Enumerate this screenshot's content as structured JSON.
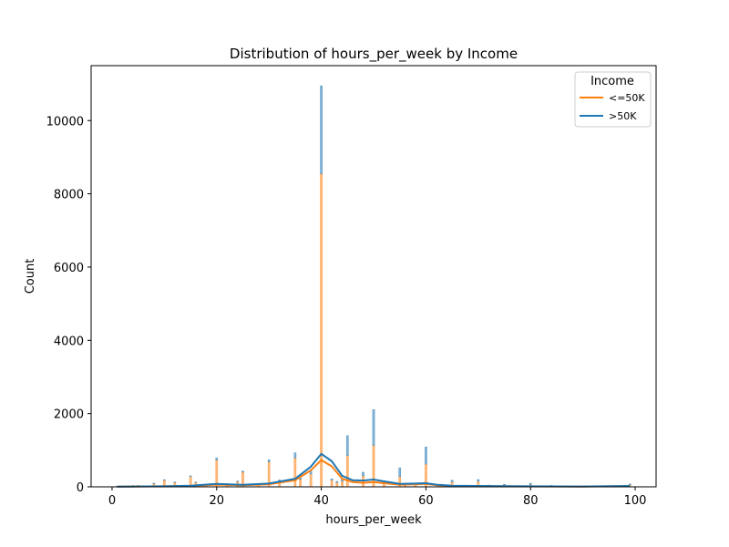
{
  "chart_data": {
    "type": "bar",
    "title": "Distribution of hours_per_week by Income",
    "xlabel": "hours_per_week",
    "ylabel": "Count",
    "xlim": [
      -4,
      104
    ],
    "ylim": [
      0,
      11500
    ],
    "xticks": [
      0,
      20,
      40,
      60,
      80,
      100
    ],
    "yticks": [
      0,
      2000,
      4000,
      6000,
      8000,
      10000
    ],
    "legend": {
      "title": "Income",
      "placement": "top-right"
    },
    "stacked": true,
    "series": [
      {
        "name": "<=50K",
        "color": "#ff7f0e",
        "x": [
          1,
          2,
          3,
          4,
          5,
          6,
          8,
          10,
          12,
          14,
          15,
          16,
          18,
          20,
          22,
          24,
          25,
          28,
          30,
          32,
          35,
          36,
          38,
          40,
          42,
          43,
          44,
          45,
          48,
          50,
          52,
          55,
          56,
          58,
          60,
          65,
          70,
          72,
          75,
          80,
          84,
          90,
          99
        ],
        "values": [
          15,
          20,
          30,
          40,
          45,
          30,
          90,
          180,
          120,
          40,
          280,
          120,
          60,
          730,
          50,
          140,
          400,
          80,
          680,
          140,
          790,
          200,
          350,
          8550,
          180,
          120,
          150,
          850,
          300,
          1130,
          100,
          280,
          50,
          80,
          620,
          130,
          150,
          40,
          50,
          60,
          30,
          20,
          60
        ],
        "kde": [
          [
            1,
            5
          ],
          [
            10,
            15
          ],
          [
            15,
            25
          ],
          [
            20,
            60
          ],
          [
            25,
            45
          ],
          [
            30,
            70
          ],
          [
            35,
            180
          ],
          [
            38,
            450
          ],
          [
            40,
            730
          ],
          [
            42,
            560
          ],
          [
            44,
            220
          ],
          [
            46,
            130
          ],
          [
            48,
            110
          ],
          [
            50,
            130
          ],
          [
            52,
            100
          ],
          [
            55,
            60
          ],
          [
            58,
            70
          ],
          [
            60,
            80
          ],
          [
            62,
            45
          ],
          [
            65,
            25
          ],
          [
            70,
            20
          ],
          [
            75,
            15
          ],
          [
            80,
            12
          ],
          [
            90,
            8
          ],
          [
            99,
            20
          ]
        ]
      },
      {
        "name": ">50K",
        "color": "#1f77b4",
        "x": [
          1,
          8,
          10,
          12,
          15,
          16,
          20,
          24,
          25,
          30,
          32,
          35,
          36,
          38,
          40,
          42,
          43,
          44,
          45,
          48,
          50,
          52,
          55,
          56,
          58,
          60,
          65,
          70,
          72,
          75,
          80,
          84,
          90,
          99
        ],
        "values": [
          3,
          10,
          15,
          10,
          20,
          10,
          60,
          20,
          30,
          60,
          50,
          140,
          40,
          80,
          2400,
          40,
          30,
          80,
          550,
          100,
          980,
          50,
          240,
          20,
          20,
          470,
          50,
          50,
          10,
          20,
          40,
          10,
          10,
          20
        ],
        "kde": [
          [
            1,
            5
          ],
          [
            10,
            15
          ],
          [
            15,
            30
          ],
          [
            20,
            80
          ],
          [
            25,
            55
          ],
          [
            30,
            90
          ],
          [
            35,
            220
          ],
          [
            38,
            550
          ],
          [
            40,
            900
          ],
          [
            42,
            700
          ],
          [
            44,
            300
          ],
          [
            46,
            180
          ],
          [
            48,
            170
          ],
          [
            50,
            200
          ],
          [
            52,
            150
          ],
          [
            55,
            80
          ],
          [
            58,
            90
          ],
          [
            60,
            100
          ],
          [
            62,
            60
          ],
          [
            65,
            30
          ],
          [
            70,
            25
          ],
          [
            75,
            18
          ],
          [
            80,
            15
          ],
          [
            90,
            10
          ],
          [
            99,
            25
          ]
        ]
      }
    ]
  }
}
